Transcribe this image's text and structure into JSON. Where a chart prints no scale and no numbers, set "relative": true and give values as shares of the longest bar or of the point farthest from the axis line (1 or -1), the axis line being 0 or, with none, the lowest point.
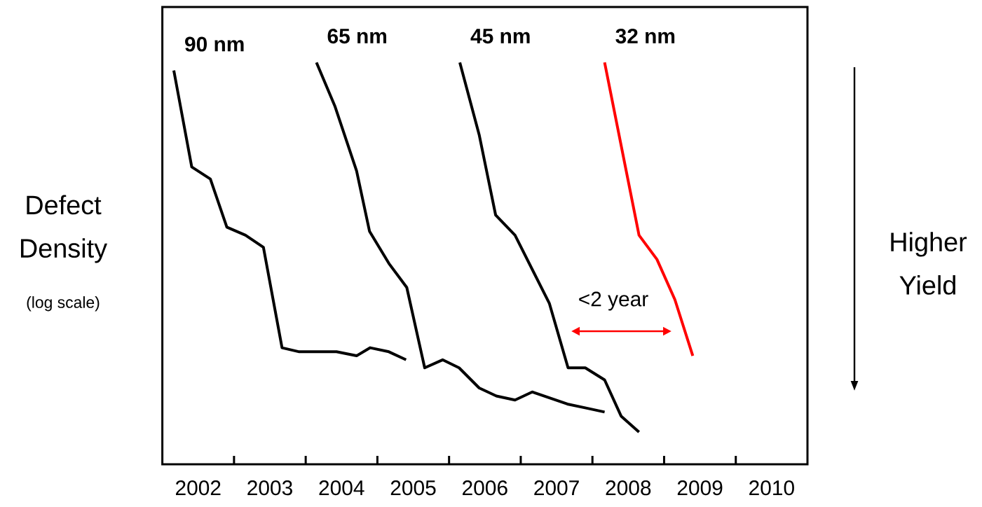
{
  "chart_data": {
    "type": "line",
    "relative": true,
    "ylabel": "Defect Density",
    "xlim": [
      2002,
      2011
    ],
    "xticks": [
      {
        "value": 2002.5,
        "label": "2002"
      },
      {
        "value": 2003.5,
        "label": "2003"
      },
      {
        "value": 2004.5,
        "label": "2004"
      },
      {
        "value": 2005.5,
        "label": "2005"
      },
      {
        "value": 2006.5,
        "label": "2006"
      },
      {
        "value": 2007.5,
        "label": "2007"
      },
      {
        "value": 2008.5,
        "label": "2008"
      },
      {
        "value": 2009.5,
        "label": "2009"
      },
      {
        "value": 2010.5,
        "label": "2010"
      },
      {
        "value": 2003,
        "label": null
      },
      {
        "value": 2004,
        "label": null
      },
      {
        "value": 2005,
        "label": null
      },
      {
        "value": 2006,
        "label": null
      },
      {
        "value": 2007,
        "label": null
      },
      {
        "value": 2008,
        "label": null
      },
      {
        "value": 2009,
        "label": null
      },
      {
        "value": 2010,
        "label": null
      }
    ],
    "series": [
      {
        "name": "90 nm",
        "color": "#000000",
        "x": [
          2002.16,
          2002.41,
          2002.67,
          2002.9,
          2003.16,
          2003.41,
          2003.67,
          2003.91,
          2004.43,
          2004.71,
          2004.9,
          2005.16,
          2005.4
        ],
        "values": [
          0.98,
          0.74,
          0.71,
          0.59,
          0.57,
          0.54,
          0.29,
          0.28,
          0.28,
          0.27,
          0.29,
          0.28,
          0.26
        ]
      },
      {
        "name": "65 nm",
        "color": "#000000",
        "x": [
          2004.15,
          2004.41,
          2004.71,
          2004.89,
          2005.16,
          2005.41,
          2005.66,
          2005.91,
          2006.14,
          2006.42,
          2006.66,
          2006.92,
          2007.16,
          2007.65,
          2007.91,
          2008.17
        ],
        "values": [
          1.0,
          0.89,
          0.73,
          0.58,
          0.5,
          0.44,
          0.24,
          0.26,
          0.24,
          0.19,
          0.17,
          0.16,
          0.18,
          0.15,
          0.14,
          0.13
        ]
      },
      {
        "name": "45 nm",
        "color": "#000000",
        "x": [
          2006.15,
          2006.42,
          2006.65,
          2006.92,
          2007.4,
          2007.66,
          2007.9,
          2008.17,
          2008.4,
          2008.65
        ],
        "values": [
          1.0,
          0.82,
          0.62,
          0.57,
          0.4,
          0.24,
          0.24,
          0.21,
          0.12,
          0.08
        ]
      },
      {
        "name": "32 nm",
        "color": "#ff0000",
        "x": [
          2008.17,
          2008.65,
          2008.9,
          2009.15,
          2009.4
        ],
        "values": [
          1.0,
          0.57,
          0.51,
          0.41,
          0.27
        ]
      }
    ],
    "annotations": [
      "(log scale)",
      "Higher Yield",
      "<2 year"
    ]
  }
}
